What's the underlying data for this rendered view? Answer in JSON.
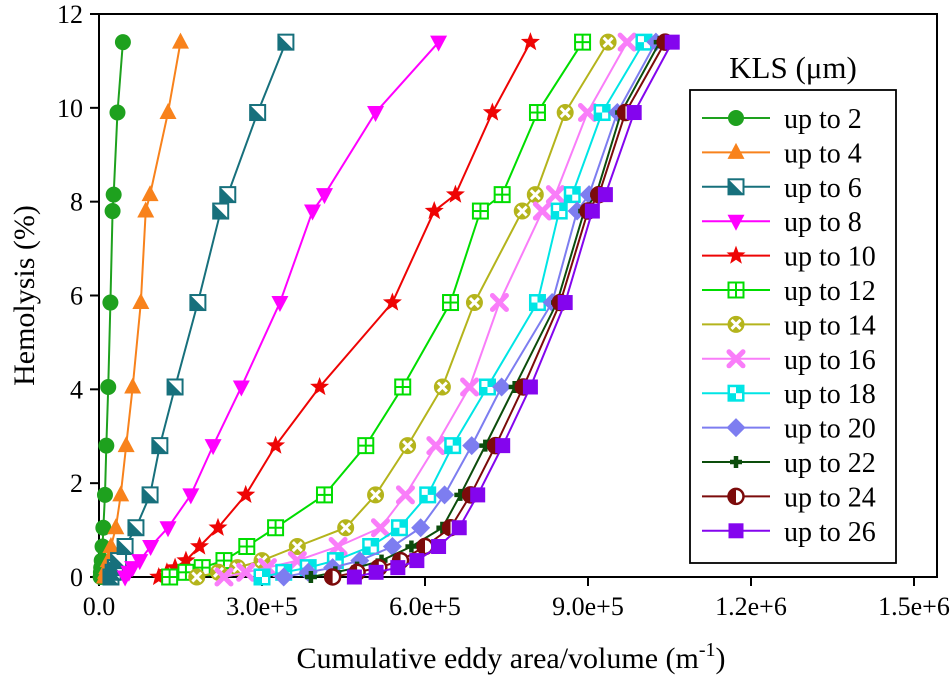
{
  "chart_data": {
    "type": "line",
    "title": "",
    "xlabel": "Cumulative eddy area/volume (m⁻¹)",
    "xlabel_parts": {
      "pre": "Cumulative eddy area/volume (m",
      "sup": "-1",
      "post": ")"
    },
    "ylabel": "Hemolysis (%)",
    "xlim": [
      0,
      1500000
    ],
    "ylim": [
      0,
      12
    ],
    "grid": false,
    "xticks": [
      {
        "v": 0,
        "label": "0.0"
      },
      {
        "v": 300000,
        "label": "3.0e+5"
      },
      {
        "v": 600000,
        "label": "6.0e+5"
      },
      {
        "v": 900000,
        "label": "9.0e+5"
      },
      {
        "v": 1200000,
        "label": "1.2e+6"
      },
      {
        "v": 1500000,
        "label": "1.5e+6"
      }
    ],
    "yticks": [
      0,
      2,
      4,
      6,
      8,
      10,
      12
    ],
    "legend": {
      "title": "KLS (μm)",
      "position": "right"
    },
    "hemolysis_levels": [
      0,
      0.1,
      0.2,
      0.35,
      0.65,
      1.05,
      1.75,
      2.8,
      4.05,
      5.85,
      7.8,
      8.15,
      9.9,
      11.4
    ],
    "series": [
      {
        "name": "up to 2",
        "marker": "circle",
        "color": "#1ea11e",
        "x": [
          3000,
          3500,
          4000,
          5000,
          6500,
          8000,
          11000,
          13500,
          17000,
          21000,
          25000,
          27000,
          34000,
          44000
        ]
      },
      {
        "name": "up to 4",
        "marker": "triangle-up",
        "color": "#f8821c",
        "x": [
          10000,
          12000,
          14000,
          17000,
          22000,
          31000,
          40000,
          50000,
          62000,
          77000,
          86000,
          94000,
          127000,
          150000
        ]
      },
      {
        "name": "up to 6",
        "marker": "square-diag",
        "color": "#17707c",
        "x": [
          22000,
          26000,
          30000,
          36000,
          48000,
          68000,
          94000,
          112000,
          140000,
          182000,
          224000,
          237000,
          292000,
          344000
        ]
      },
      {
        "name": "up to 8",
        "marker": "triangle-down",
        "color": "#ff00ff",
        "x": [
          48000,
          55000,
          62000,
          75000,
          95000,
          127000,
          169000,
          210000,
          262000,
          333000,
          393000,
          415000,
          509000,
          625000
        ]
      },
      {
        "name": "up to 10",
        "marker": "star",
        "color": "#ee0404",
        "x": [
          110000,
          125000,
          140000,
          160000,
          185000,
          219000,
          270000,
          325000,
          406000,
          540000,
          617000,
          656000,
          724000,
          794000
        ]
      },
      {
        "name": "up to 12",
        "marker": "square-grid",
        "color": "#00dd00",
        "x": [
          130000,
          160000,
          190000,
          230000,
          272000,
          325000,
          415000,
          491000,
          559000,
          647000,
          702000,
          742000,
          807000,
          890000
        ]
      },
      {
        "name": "up to 14",
        "marker": "circle-x",
        "color": "#b4b41c",
        "x": [
          180000,
          220000,
          255000,
          300000,
          365000,
          454000,
          509000,
          568000,
          632000,
          691000,
          779000,
          803000,
          858000,
          937000
        ]
      },
      {
        "name": "up to 16",
        "marker": "x",
        "color": "#f97df9",
        "x": [
          230000,
          270000,
          310000,
          365000,
          440000,
          518000,
          564000,
          620000,
          682000,
          737000,
          816000,
          840000,
          899000,
          972000
        ]
      },
      {
        "name": "up to 18",
        "marker": "square-checker",
        "color": "#00e5e5",
        "x": [
          300000,
          340000,
          385000,
          435000,
          500000,
          553000,
          605000,
          651000,
          715000,
          807000,
          847000,
          871000,
          926000,
          1003000
        ]
      },
      {
        "name": "up to 20",
        "marker": "diamond",
        "color": "#7d7df0",
        "x": [
          340000,
          385000,
          430000,
          480000,
          540000,
          592000,
          636000,
          686000,
          741000,
          834000,
          880000,
          902000,
          954000,
          1025000
        ]
      },
      {
        "name": "up to 22",
        "marker": "plus",
        "color": "#0c4d0c",
        "x": [
          390000,
          435000,
          475000,
          520000,
          575000,
          632000,
          665000,
          711000,
          765000,
          843000,
          893000,
          915000,
          961000,
          1032000
        ]
      },
      {
        "name": "up to 24",
        "marker": "circle-half",
        "color": "#7c0b0b",
        "x": [
          430000,
          475000,
          515000,
          555000,
          600000,
          647000,
          684000,
          730000,
          781000,
          849000,
          900000,
          920000,
          969000,
          1042000
        ]
      },
      {
        "name": "up to 26",
        "marker": "square",
        "color": "#8405ee",
        "x": [
          470000,
          510000,
          550000,
          585000,
          625000,
          663000,
          697000,
          743000,
          794000,
          858000,
          908000,
          932000,
          985000,
          1055000
        ]
      }
    ]
  }
}
